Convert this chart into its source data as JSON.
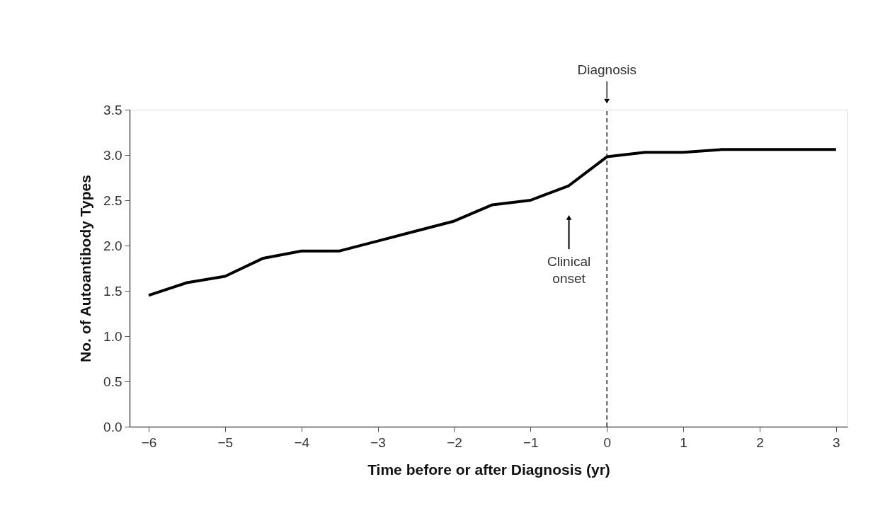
{
  "chart_data": {
    "type": "line",
    "xlabel": "Time before or after Diagnosis (yr)",
    "ylabel": "No. of Autoantibody Types",
    "x": [
      -6,
      -5.5,
      -5,
      -4.5,
      -4,
      -3.5,
      -3,
      -2.5,
      -2,
      -1.5,
      -1,
      -0.5,
      0,
      0.5,
      1,
      1.5,
      2,
      3
    ],
    "series": [
      {
        "color": "#000000",
        "values": [
          1.45,
          1.59,
          1.66,
          1.86,
          1.94,
          1.94,
          2.05,
          2.16,
          2.27,
          2.45,
          2.5,
          2.66,
          2.98,
          3.03,
          3.03,
          3.06,
          3.06,
          3.06
        ]
      }
    ],
    "xlim": [
      -6.25,
      3.15
    ],
    "ylim": [
      0,
      3.5
    ],
    "xticks": [
      {
        "value": -6,
        "label": "−6"
      },
      {
        "value": -5,
        "label": "−5"
      },
      {
        "value": -4,
        "label": "−4"
      },
      {
        "value": -3,
        "label": "−3"
      },
      {
        "value": -2,
        "label": "−2"
      },
      {
        "value": -1,
        "label": "−1"
      },
      0,
      1,
      2,
      3
    ],
    "yticks": [
      {
        "value": 0,
        "label": "0.0"
      },
      {
        "value": 0.5,
        "label": "0.5"
      },
      {
        "value": 1,
        "label": "1.0"
      },
      {
        "value": 1.5,
        "label": "1.5"
      },
      {
        "value": 2,
        "label": "2.0"
      },
      {
        "value": 2.5,
        "label": "2.5"
      },
      {
        "value": 3,
        "label": "3.0"
      },
      {
        "value": 3.5,
        "label": "3.5"
      }
    ],
    "ref_lines": [
      {
        "axis": "x",
        "value": 0,
        "label": "Diagnosis",
        "line_style": "dashed",
        "color": "#000000"
      }
    ],
    "annotations": [
      "Clinical onset"
    ],
    "grid": false,
    "marker": "none",
    "line_style": "solid"
  }
}
